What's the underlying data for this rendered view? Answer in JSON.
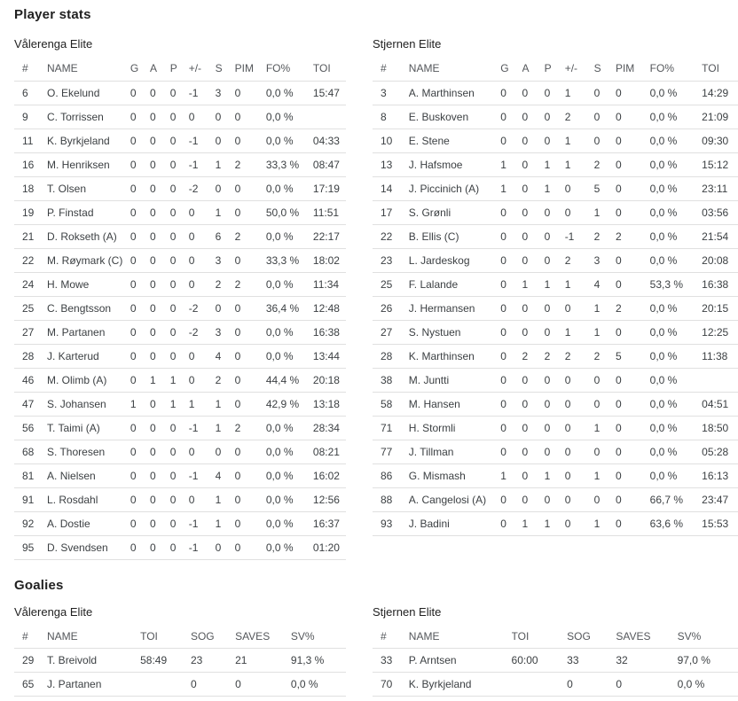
{
  "headings": {
    "player_stats": "Player stats",
    "goalies": "Goalies"
  },
  "colors": {
    "heading_text": "#212121",
    "body_text": "#3c4043",
    "header_text": "#54575b",
    "divider": "#e0e0e0",
    "background": "#ffffff"
  },
  "player_tables": [
    {
      "team": "Vålerenga Elite",
      "columns": [
        "#",
        "NAME",
        "G",
        "A",
        "P",
        "+/-",
        "S",
        "PIM",
        "FO%",
        "TOI"
      ],
      "rows": [
        [
          "6",
          "O. Ekelund",
          "0",
          "0",
          "0",
          "-1",
          "3",
          "0",
          "0,0 %",
          "15:47"
        ],
        [
          "9",
          "C. Torrissen",
          "0",
          "0",
          "0",
          "0",
          "0",
          "0",
          "0,0 %",
          ""
        ],
        [
          "11",
          "K. Byrkjeland",
          "0",
          "0",
          "0",
          "-1",
          "0",
          "0",
          "0,0 %",
          "04:33"
        ],
        [
          "16",
          "M. Henriksen",
          "0",
          "0",
          "0",
          "-1",
          "1",
          "2",
          "33,3 %",
          "08:47"
        ],
        [
          "18",
          "T. Olsen",
          "0",
          "0",
          "0",
          "-2",
          "0",
          "0",
          "0,0 %",
          "17:19"
        ],
        [
          "19",
          "P. Finstad",
          "0",
          "0",
          "0",
          "0",
          "1",
          "0",
          "50,0 %",
          "11:51"
        ],
        [
          "21",
          "D. Rokseth (A)",
          "0",
          "0",
          "0",
          "0",
          "6",
          "2",
          "0,0 %",
          "22:17"
        ],
        [
          "22",
          "M. Røymark (C)",
          "0",
          "0",
          "0",
          "0",
          "3",
          "0",
          "33,3 %",
          "18:02"
        ],
        [
          "24",
          "H. Mowe",
          "0",
          "0",
          "0",
          "0",
          "2",
          "2",
          "0,0 %",
          "11:34"
        ],
        [
          "25",
          "C. Bengtsson",
          "0",
          "0",
          "0",
          "-2",
          "0",
          "0",
          "36,4 %",
          "12:48"
        ],
        [
          "27",
          "M. Partanen",
          "0",
          "0",
          "0",
          "-2",
          "3",
          "0",
          "0,0 %",
          "16:38"
        ],
        [
          "28",
          "J. Karterud",
          "0",
          "0",
          "0",
          "0",
          "4",
          "0",
          "0,0 %",
          "13:44"
        ],
        [
          "46",
          "M. Olimb (A)",
          "0",
          "1",
          "1",
          "0",
          "2",
          "0",
          "44,4 %",
          "20:18"
        ],
        [
          "47",
          "S. Johansen",
          "1",
          "0",
          "1",
          "1",
          "1",
          "0",
          "42,9 %",
          "13:18"
        ],
        [
          "56",
          "T. Taimi (A)",
          "0",
          "0",
          "0",
          "-1",
          "1",
          "2",
          "0,0 %",
          "28:34"
        ],
        [
          "68",
          "S. Thoresen",
          "0",
          "0",
          "0",
          "0",
          "0",
          "0",
          "0,0 %",
          "08:21"
        ],
        [
          "81",
          "A. Nielsen",
          "0",
          "0",
          "0",
          "-1",
          "4",
          "0",
          "0,0 %",
          "16:02"
        ],
        [
          "91",
          "L. Rosdahl",
          "0",
          "0",
          "0",
          "0",
          "1",
          "0",
          "0,0 %",
          "12:56"
        ],
        [
          "92",
          "A. Dostie",
          "0",
          "0",
          "0",
          "-1",
          "1",
          "0",
          "0,0 %",
          "16:37"
        ],
        [
          "95",
          "D. Svendsen",
          "0",
          "0",
          "0",
          "-1",
          "0",
          "0",
          "0,0 %",
          "01:20"
        ]
      ]
    },
    {
      "team": "Stjernen Elite",
      "columns": [
        "#",
        "NAME",
        "G",
        "A",
        "P",
        "+/-",
        "S",
        "PIM",
        "FO%",
        "TOI"
      ],
      "rows": [
        [
          "3",
          "A. Marthinsen",
          "0",
          "0",
          "0",
          "1",
          "0",
          "0",
          "0,0 %",
          "14:29"
        ],
        [
          "8",
          "E. Buskoven",
          "0",
          "0",
          "0",
          "2",
          "0",
          "0",
          "0,0 %",
          "21:09"
        ],
        [
          "10",
          "E. Stene",
          "0",
          "0",
          "0",
          "1",
          "0",
          "0",
          "0,0 %",
          "09:30"
        ],
        [
          "13",
          "J. Hafsmoe",
          "1",
          "0",
          "1",
          "1",
          "2",
          "0",
          "0,0 %",
          "15:12"
        ],
        [
          "14",
          "J. Piccinich (A)",
          "1",
          "0",
          "1",
          "0",
          "5",
          "0",
          "0,0 %",
          "23:11"
        ],
        [
          "17",
          "S. Grønli",
          "0",
          "0",
          "0",
          "0",
          "1",
          "0",
          "0,0 %",
          "03:56"
        ],
        [
          "22",
          "B. Ellis (C)",
          "0",
          "0",
          "0",
          "-1",
          "2",
          "2",
          "0,0 %",
          "21:54"
        ],
        [
          "23",
          "L. Jardeskog",
          "0",
          "0",
          "0",
          "2",
          "3",
          "0",
          "0,0 %",
          "20:08"
        ],
        [
          "25",
          "F. Lalande",
          "0",
          "1",
          "1",
          "1",
          "4",
          "0",
          "53,3 %",
          "16:38"
        ],
        [
          "26",
          "J. Hermansen",
          "0",
          "0",
          "0",
          "0",
          "1",
          "2",
          "0,0 %",
          "20:15"
        ],
        [
          "27",
          "S. Nystuen",
          "0",
          "0",
          "0",
          "1",
          "1",
          "0",
          "0,0 %",
          "12:25"
        ],
        [
          "28",
          "K. Marthinsen",
          "0",
          "2",
          "2",
          "2",
          "2",
          "5",
          "0,0 %",
          "11:38"
        ],
        [
          "38",
          "M. Juntti",
          "0",
          "0",
          "0",
          "0",
          "0",
          "0",
          "0,0 %",
          ""
        ],
        [
          "58",
          "M. Hansen",
          "0",
          "0",
          "0",
          "0",
          "0",
          "0",
          "0,0 %",
          "04:51"
        ],
        [
          "71",
          "H. Stormli",
          "0",
          "0",
          "0",
          "0",
          "1",
          "0",
          "0,0 %",
          "18:50"
        ],
        [
          "77",
          "J. Tillman",
          "0",
          "0",
          "0",
          "0",
          "0",
          "0",
          "0,0 %",
          "05:28"
        ],
        [
          "86",
          "G. Mismash",
          "1",
          "0",
          "1",
          "0",
          "1",
          "0",
          "0,0 %",
          "16:13"
        ],
        [
          "88",
          "A. Cangelosi (A)",
          "0",
          "0",
          "0",
          "0",
          "0",
          "0",
          "66,7 %",
          "23:47"
        ],
        [
          "93",
          "J. Badini",
          "0",
          "1",
          "1",
          "0",
          "1",
          "0",
          "63,6 %",
          "15:53"
        ]
      ]
    }
  ],
  "goalie_tables": [
    {
      "team": "Vålerenga Elite",
      "columns": [
        "#",
        "NAME",
        "TOI",
        "SOG",
        "SAVES",
        "SV%"
      ],
      "rows": [
        [
          "29",
          "T. Breivold",
          "58:49",
          "23",
          "21",
          "91,3 %"
        ],
        [
          "65",
          "J. Partanen",
          "",
          "0",
          "0",
          "0,0 %"
        ]
      ]
    },
    {
      "team": "Stjernen Elite",
      "columns": [
        "#",
        "NAME",
        "TOI",
        "SOG",
        "SAVES",
        "SV%"
      ],
      "rows": [
        [
          "33",
          "P. Arntsen",
          "60:00",
          "33",
          "32",
          "97,0 %"
        ],
        [
          "70",
          "K. Byrkjeland",
          "",
          "0",
          "0",
          "0,0 %"
        ]
      ]
    }
  ]
}
